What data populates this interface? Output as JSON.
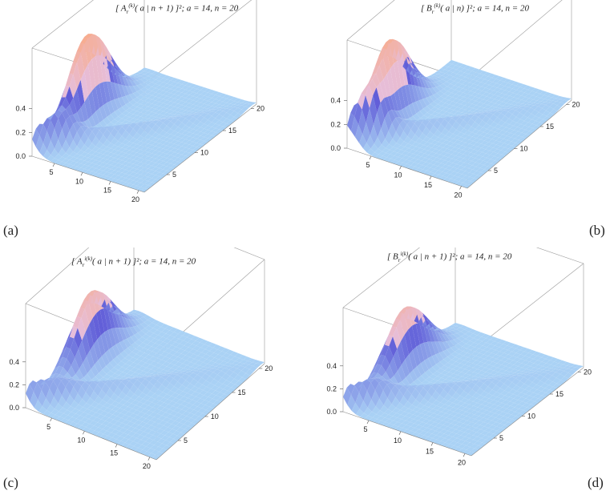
{
  "chart_data": [
    {
      "type": "surface",
      "panel_label": "(a)",
      "title": "[ A_r^(k)( a | n + 1) ]^2 ;  a = 14,  n = 20",
      "title_parts": {
        "sym": "A",
        "sup": "(k)",
        "args": "( a | n + 1) ]",
        "tail": "²;  a = 14,  n = 20"
      },
      "zlim": [
        0,
        0.5
      ],
      "z_ticks": [
        "0.0",
        "0.2",
        "0.4"
      ],
      "x_ticks": [
        "5",
        "10",
        "15",
        "20"
      ],
      "y_ticks": [
        "5",
        "10",
        "15",
        "20"
      ],
      "peak_height": 0.72,
      "peak_position": 0.45
    },
    {
      "type": "surface",
      "panel_label": "(b)",
      "title": "[ B_r^(k)( a | n) ]^2 ;  a = 14,  n = 20",
      "title_parts": {
        "sym": "B",
        "sup": "(k)",
        "args": "( a | n) ]",
        "tail": "²;  a = 14,  n = 20"
      },
      "zlim": [
        0,
        0.5
      ],
      "z_ticks": [
        "0.0",
        "0.2",
        "0.4"
      ],
      "x_ticks": [
        "5",
        "10",
        "15",
        "20"
      ],
      "y_ticks": [
        "5",
        "10",
        "15",
        "20"
      ],
      "peak_height": 0.68,
      "peak_position": 0.35
    },
    {
      "type": "surface",
      "panel_label": "(c)",
      "title": "[ A_r^i(k)( a | n + 1) ]^2 ;  a = 14,  n = 20",
      "title_parts": {
        "sym": "A",
        "sup": "i(k)",
        "args": "( a | n + 1) ]",
        "tail": "²;  a = 14,  n = 20"
      },
      "zlim": [
        0,
        0.5
      ],
      "z_ticks": [
        "0.0",
        "0.2",
        "0.4"
      ],
      "x_ticks": [
        "5",
        "10",
        "15",
        "20"
      ],
      "y_ticks": [
        "5",
        "10",
        "15",
        "20"
      ],
      "peak_height": 0.58,
      "peak_position": 0.55
    },
    {
      "type": "surface",
      "panel_label": "(d)",
      "title": "[ B_r^i(k)( a | n + 1) ]^2 ;  a = 14,  n = 20",
      "title_parts": {
        "sym": "B",
        "sup": "i(k)",
        "args": "( a | n + 1) ]",
        "tail": "²;  a = 14,  n = 20"
      },
      "zlim": [
        0,
        0.5
      ],
      "z_ticks": [
        "0.0",
        "0.2",
        "0.4"
      ],
      "x_ticks": [
        "5",
        "10",
        "15",
        "20"
      ],
      "y_ticks": [
        "5",
        "10",
        "15",
        "20"
      ],
      "peak_height": 0.55,
      "peak_position": 0.5
    }
  ]
}
